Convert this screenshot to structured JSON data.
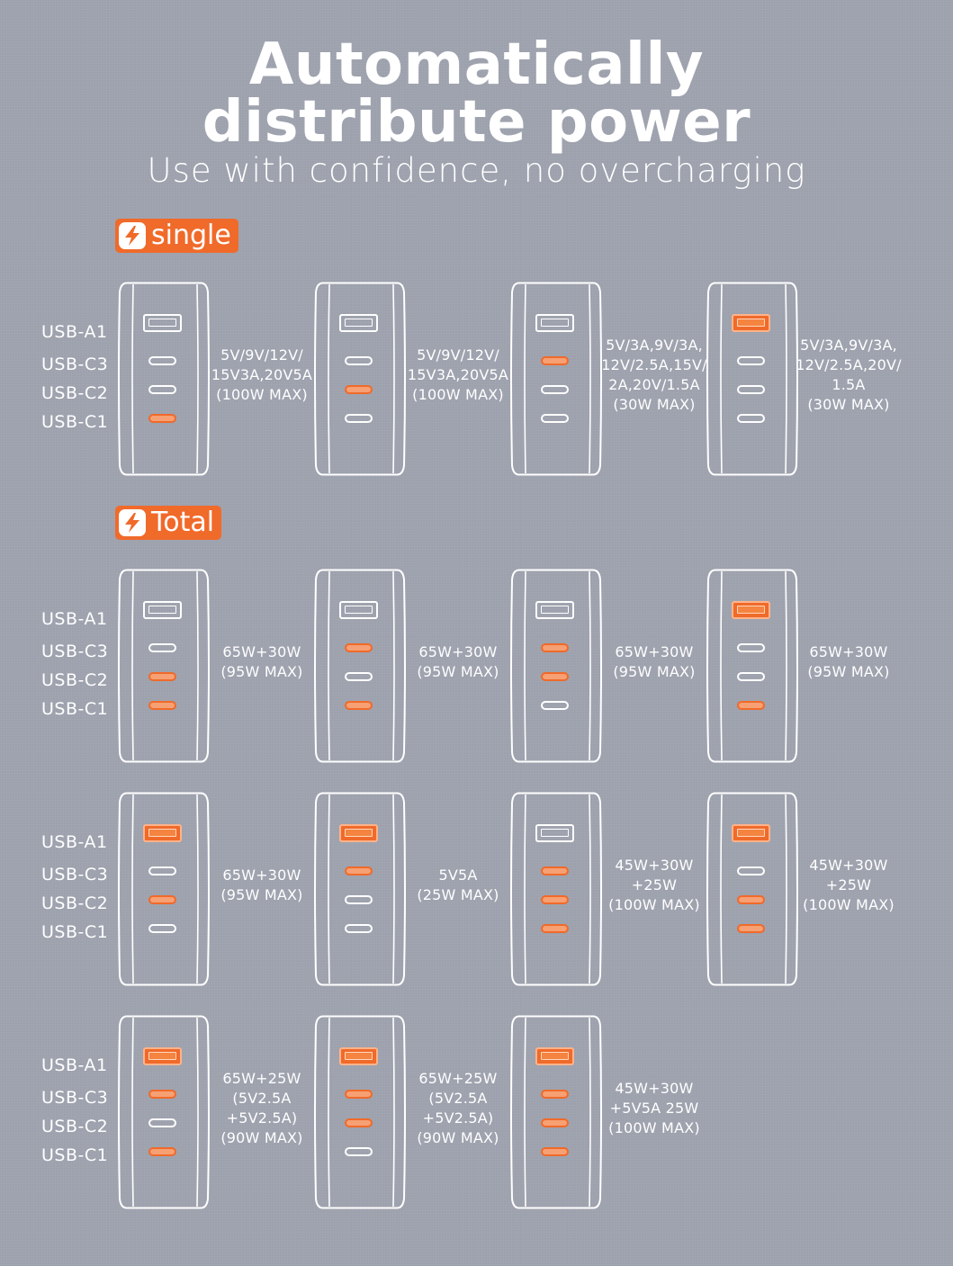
{
  "title_line1": "Automatically",
  "title_line2": "distribute power",
  "subtitle": "Use with confidence, no overcharging",
  "port_labels": [
    "USB-A1",
    "USB-C3",
    "USB-C2",
    "USB-C1"
  ],
  "colors": {
    "accent": "#f06a2a",
    "background": "#9da1ad"
  },
  "sections": [
    {
      "label": "single",
      "icon": "lightning-icon",
      "rows": [
        [
          {
            "active": [
              false,
              false,
              false,
              true
            ],
            "spec": "5V/9V/12V/\n15V3A,20V5A\n(100W MAX)"
          },
          {
            "active": [
              false,
              false,
              true,
              false
            ],
            "spec": "5V/9V/12V/\n15V3A,20V5A\n(100W MAX)"
          },
          {
            "active": [
              false,
              true,
              false,
              false
            ],
            "spec": "5V/3A,9V/3A,\n12V/2.5A,15V/\n2A,20V/1.5A\n(30W MAX)"
          },
          {
            "active": [
              true,
              false,
              false,
              false
            ],
            "spec": "5V/3A,9V/3A,\n12V/2.5A,20V/\n1.5A\n(30W MAX)"
          }
        ]
      ]
    },
    {
      "label": "Total",
      "icon": "lightning-icon",
      "rows": [
        [
          {
            "active": [
              false,
              false,
              true,
              true
            ],
            "spec": "65W+30W\n(95W MAX)"
          },
          {
            "active": [
              false,
              true,
              false,
              true
            ],
            "spec": "65W+30W\n(95W MAX)"
          },
          {
            "active": [
              false,
              true,
              true,
              false
            ],
            "spec": "65W+30W\n(95W MAX)"
          },
          {
            "active": [
              true,
              false,
              false,
              true
            ],
            "spec": "65W+30W\n(95W MAX)"
          }
        ],
        [
          {
            "active": [
              true,
              false,
              true,
              false
            ],
            "spec": "65W+30W\n(95W MAX)"
          },
          {
            "active": [
              true,
              true,
              false,
              false
            ],
            "spec": "5V5A\n(25W MAX)"
          },
          {
            "active": [
              false,
              true,
              true,
              true
            ],
            "spec": "45W+30W\n+25W\n(100W MAX)"
          },
          {
            "active": [
              true,
              false,
              true,
              true
            ],
            "spec": "45W+30W\n+25W\n(100W MAX)"
          }
        ],
        [
          {
            "active": [
              true,
              true,
              false,
              true
            ],
            "spec": "65W+25W\n(5V2.5A\n+5V2.5A)\n(90W MAX)"
          },
          {
            "active": [
              true,
              true,
              true,
              false
            ],
            "spec": "65W+25W\n(5V2.5A\n+5V2.5A)\n(90W MAX)"
          },
          {
            "active": [
              true,
              true,
              true,
              true
            ],
            "spec": "45W+30W\n+5V5A 25W\n(100W MAX)"
          }
        ]
      ]
    }
  ]
}
